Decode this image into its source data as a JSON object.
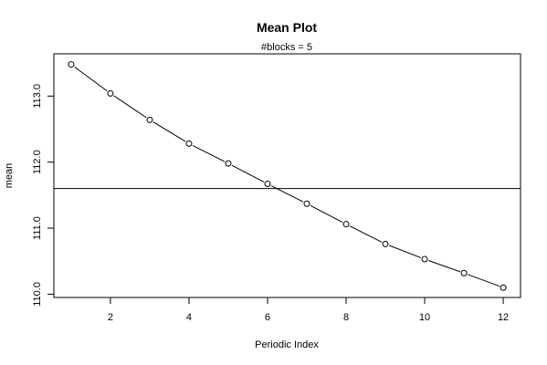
{
  "chart_data": {
    "type": "line",
    "title": "Mean Plot",
    "subtitle": "#blocks =  5",
    "xlabel": "Periodic Index",
    "ylabel": "mean",
    "x": [
      1,
      2,
      3,
      4,
      5,
      6,
      7,
      8,
      9,
      10,
      11,
      12
    ],
    "series": [
      {
        "values": [
          113.48,
          113.04,
          112.64,
          112.28,
          111.98,
          111.67,
          111.37,
          111.06,
          110.76,
          110.53,
          110.32,
          110.1
        ]
      }
    ],
    "reference_line": {
      "y": 111.6
    },
    "xlim": [
      0.56,
      12.44
    ],
    "ylim": [
      109.95,
      113.64
    ],
    "xticks": [
      {
        "value": 2,
        "label": "2"
      },
      {
        "value": 4,
        "label": "4"
      },
      {
        "value": 6,
        "label": "6"
      },
      {
        "value": 8,
        "label": "8"
      },
      {
        "value": 10,
        "label": "10"
      },
      {
        "value": 12,
        "label": "12"
      }
    ],
    "yticks": [
      {
        "value": 110.0,
        "label": "110.0"
      },
      {
        "value": 111.0,
        "label": "111.0"
      },
      {
        "value": 112.0,
        "label": "112.0"
      },
      {
        "value": 113.0,
        "label": "113.0"
      }
    ],
    "grid": false,
    "markers": "open-circle",
    "line_color": "#000000"
  }
}
